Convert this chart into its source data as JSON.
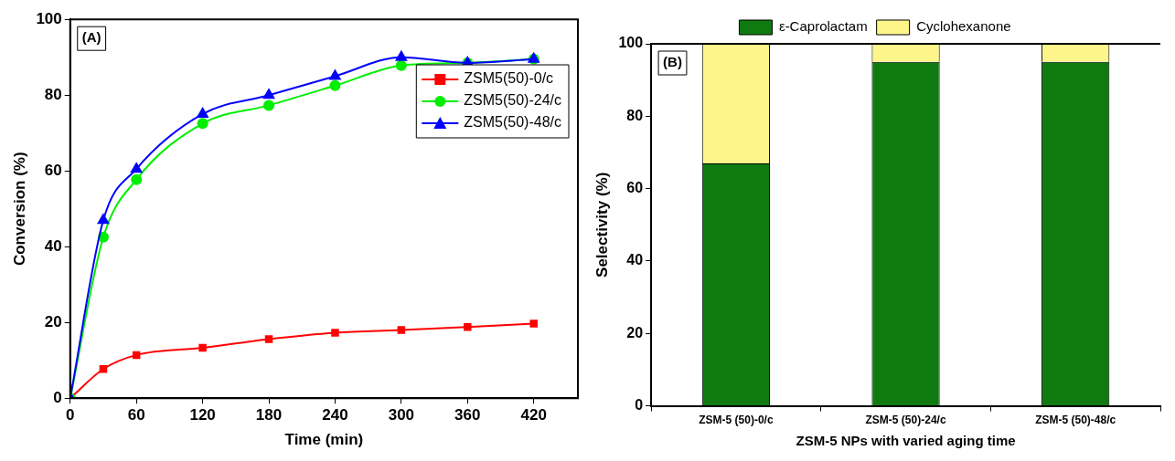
{
  "chart_data": [
    {
      "type": "line",
      "xlabel": "Time (min)",
      "ylabel": "Conversion (%)",
      "annotations": [
        "(A)"
      ],
      "x": [
        0,
        30,
        60,
        120,
        180,
        240,
        300,
        360,
        420
      ],
      "xlim": [
        0,
        460
      ],
      "xticks": [
        0,
        60,
        120,
        180,
        240,
        300,
        360,
        420
      ],
      "ylim": [
        0,
        100
      ],
      "yticks": [
        0,
        20,
        40,
        60,
        80,
        100
      ],
      "grid": false,
      "legend": "top right",
      "series": [
        {
          "name": "ZSM5(50)-0/c",
          "color": "#ff0000",
          "marker": "square",
          "values": [
            0,
            7.7,
            11.4,
            13.3,
            15.6,
            17.3,
            18.0,
            18.8,
            19.7
          ]
        },
        {
          "name": "ZSM5(50)-24/c",
          "color": "#00ee00",
          "marker": "circle",
          "values": [
            0,
            42.5,
            57.7,
            72.5,
            77.3,
            82.5,
            87.8,
            88.5,
            89.5
          ]
        },
        {
          "name": "ZSM5(50)-48/c",
          "color": "#0000ff",
          "marker": "triangle",
          "values": [
            0,
            47,
            60.5,
            75,
            80,
            85,
            90,
            88.5,
            89.5
          ]
        }
      ]
    },
    {
      "type": "bar",
      "stacked": true,
      "xlabel": "ZSM-5 NPs with varied aging time",
      "ylabel": "Selectivity (%)",
      "annotations": [
        "(B)"
      ],
      "categories": [
        "ZSM-5 (50)-0/c",
        "ZSM-5 (50)-24/c",
        "ZSM-5 (50)-48/c"
      ],
      "ylim": [
        0,
        100
      ],
      "yticks": [
        0,
        20,
        40,
        60,
        80,
        100
      ],
      "grid": false,
      "legend": "top",
      "series": [
        {
          "name": "ε-Caprolactam",
          "color": "#0f7a0f",
          "values": [
            67,
            95,
            95
          ]
        },
        {
          "name": "Cyclohexanone",
          "color": "#fdf58a",
          "values": [
            33,
            5,
            5
          ]
        }
      ]
    }
  ]
}
